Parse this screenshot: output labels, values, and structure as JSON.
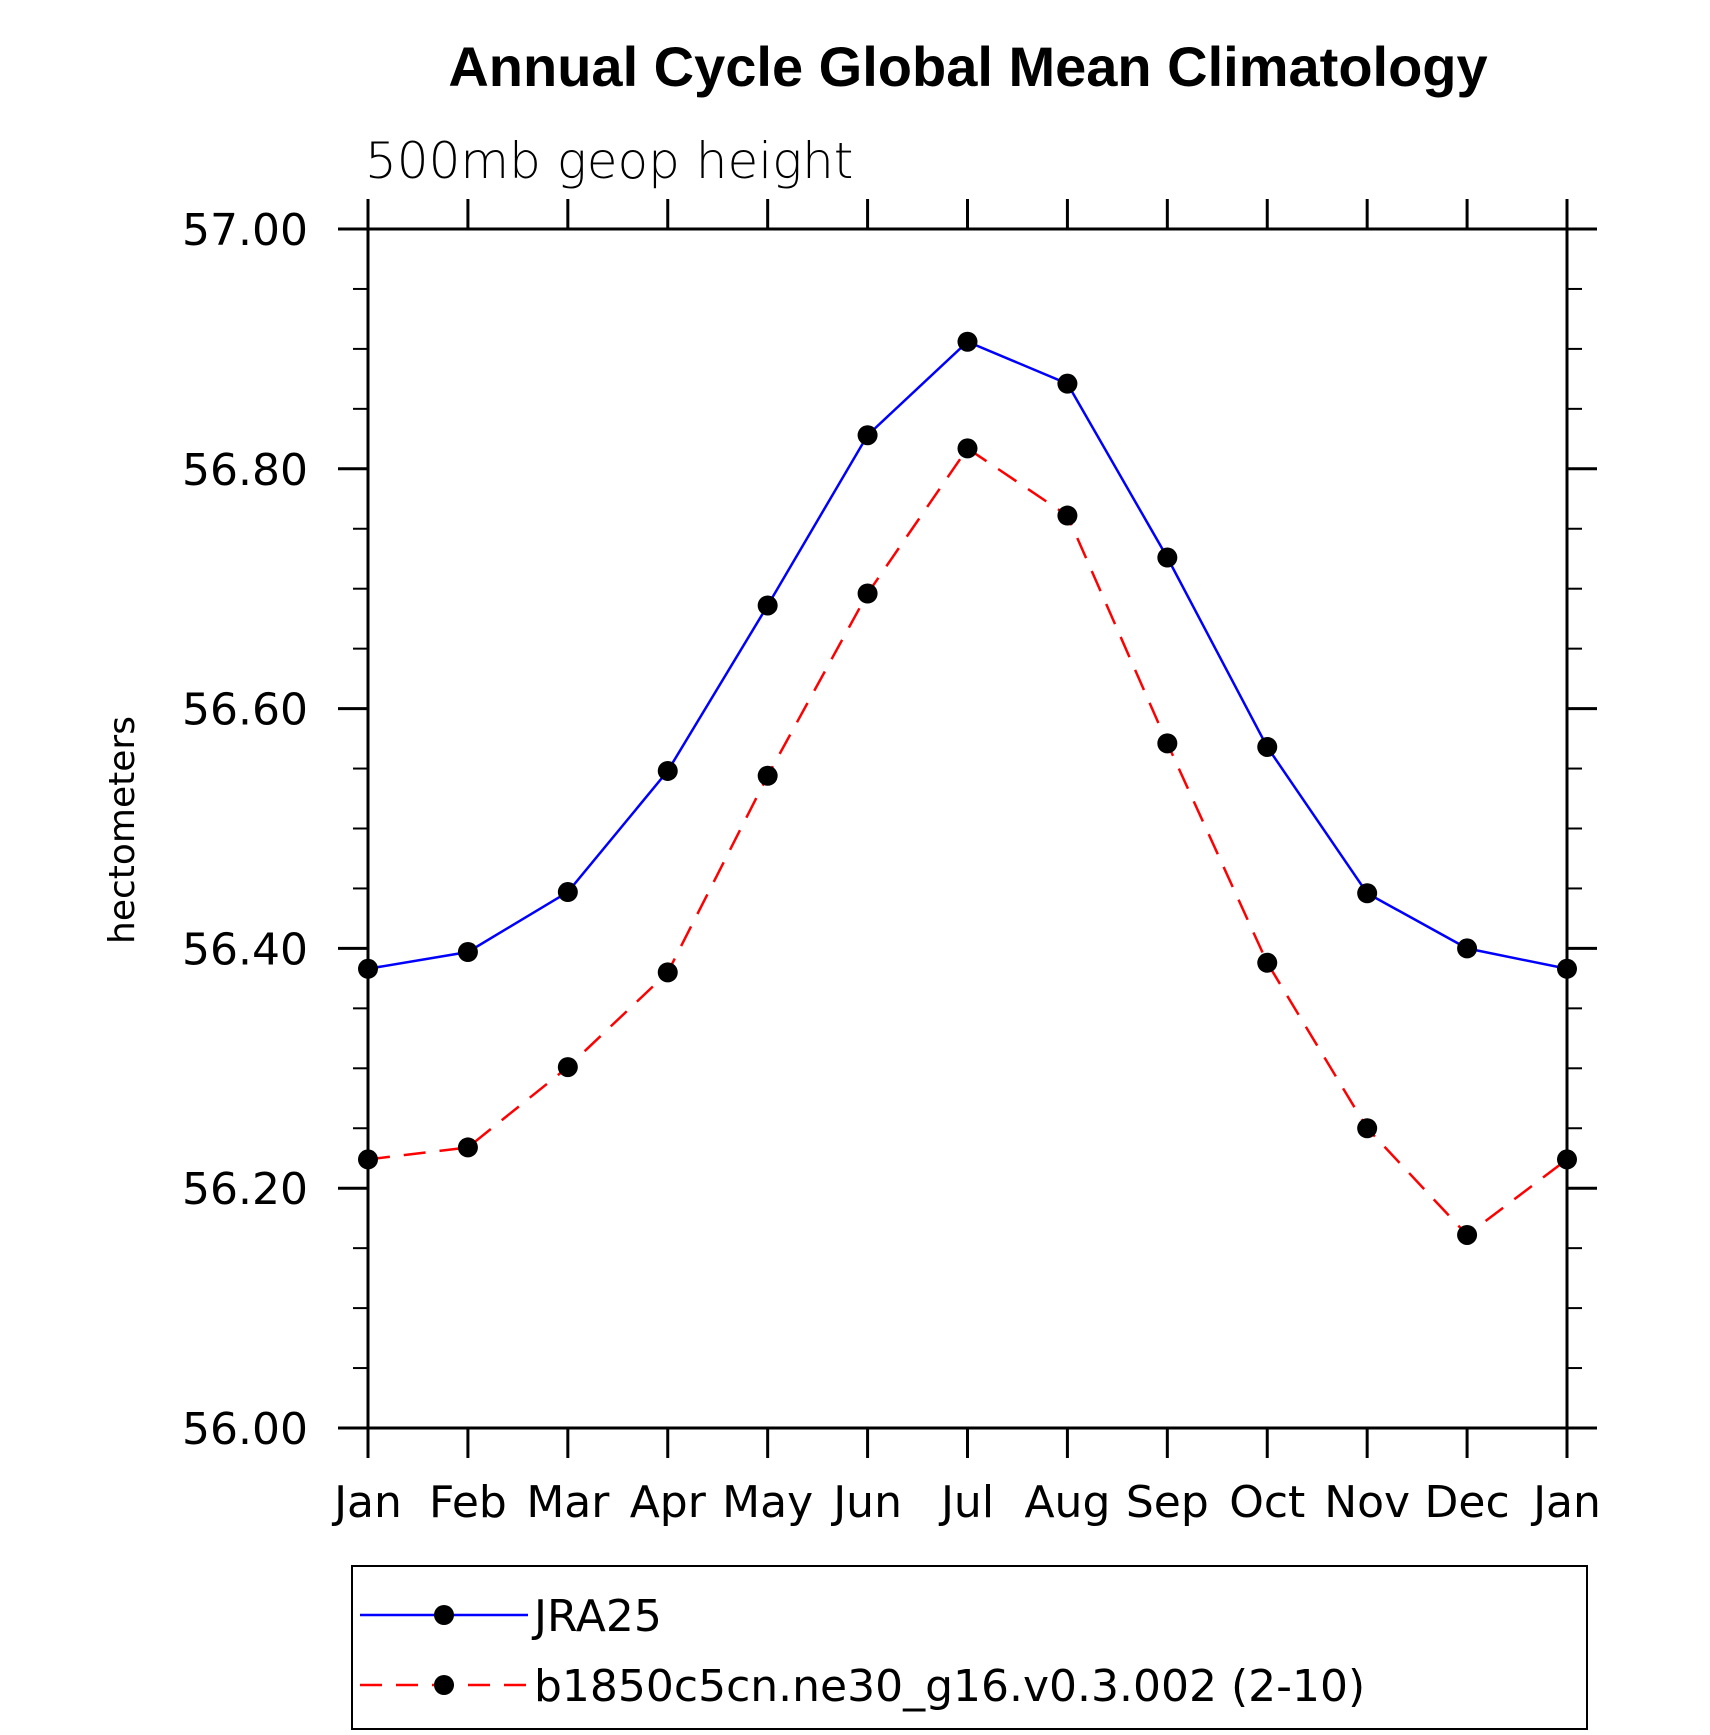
{
  "chart_data": {
    "type": "line",
    "title": "Annual Cycle Global Mean Climatology",
    "subtitle": "500mb geop height",
    "xlabel": "",
    "ylabel": "hectometers",
    "categories": [
      "Jan",
      "Feb",
      "Mar",
      "Apr",
      "May",
      "Jun",
      "Jul",
      "Aug",
      "Sep",
      "Oct",
      "Nov",
      "Dec",
      "Jan"
    ],
    "ylim": [
      56.0,
      57.0
    ],
    "yticks": [
      "56.00",
      "56.20",
      "56.40",
      "56.60",
      "56.80",
      "57.00"
    ],
    "grid": false,
    "legend": "bottom",
    "series": [
      {
        "name": "JRA25",
        "color": "#0000ff",
        "line_style": "solid",
        "marker": "filled-circle",
        "values": [
          56.383,
          56.397,
          56.447,
          56.548,
          56.686,
          56.828,
          56.906,
          56.871,
          56.726,
          56.568,
          56.446,
          56.4,
          56.383
        ]
      },
      {
        "name": "b1850c5cn.ne30_g16.v0.3.002 (2-10)",
        "color": "#ff0000",
        "line_style": "dashed",
        "marker": "filled-circle",
        "values": [
          56.224,
          56.234,
          56.301,
          56.38,
          56.544,
          56.696,
          56.817,
          56.761,
          56.571,
          56.388,
          56.25,
          56.161,
          56.224
        ]
      }
    ]
  }
}
